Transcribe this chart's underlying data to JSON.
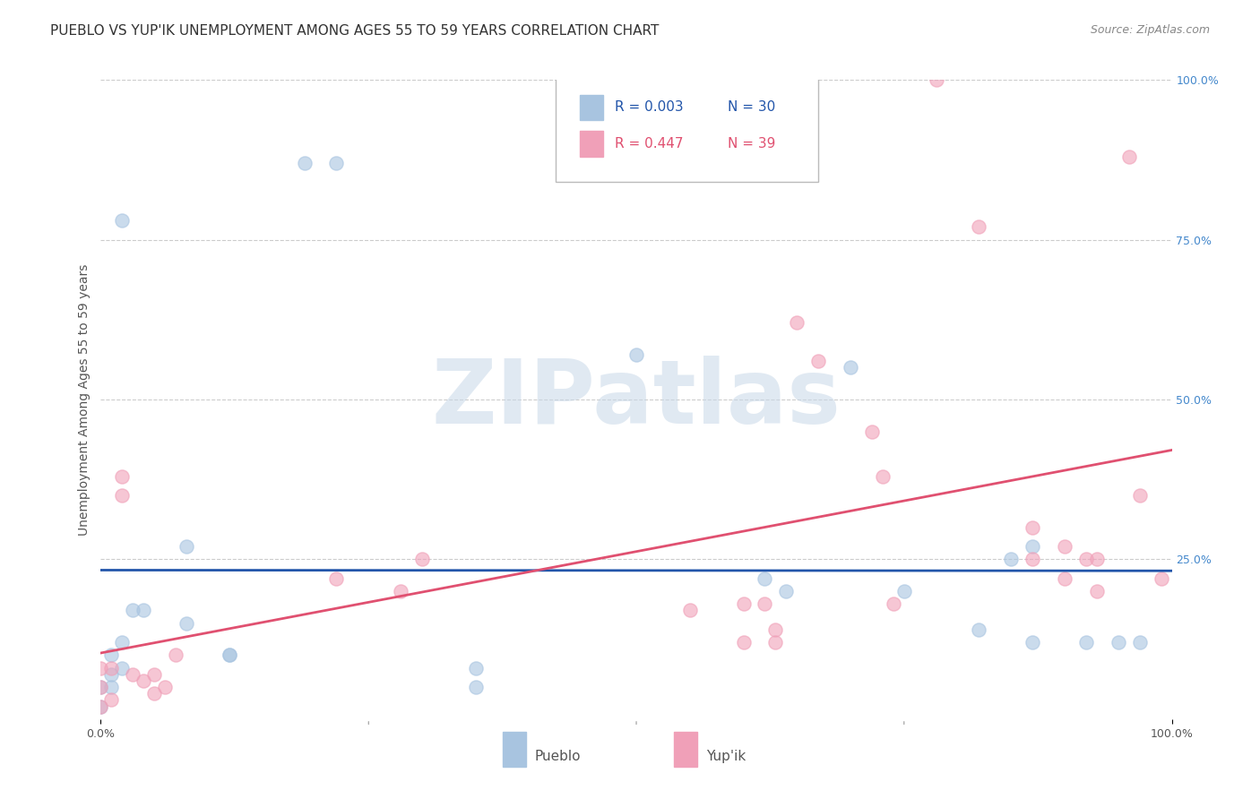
{
  "title": "PUEBLO VS YUP'IK UNEMPLOYMENT AMONG AGES 55 TO 59 YEARS CORRELATION CHART",
  "source": "Source: ZipAtlas.com",
  "ylabel": "Unemployment Among Ages 55 to 59 years",
  "xlim": [
    0.0,
    1.0
  ],
  "ylim": [
    0.0,
    1.0
  ],
  "grid_color": "#cccccc",
  "background_color": "#ffffff",
  "pueblo_color": "#a8c4e0",
  "yupik_color": "#f0a0b8",
  "pueblo_line_color": "#2255aa",
  "yupik_line_color": "#e05070",
  "legend_pueblo_r": "R = 0.003",
  "legend_pueblo_n": "N = 30",
  "legend_yupik_r": "R = 0.447",
  "legend_yupik_n": "N = 39",
  "pueblo_scatter_x": [
    0.02,
    0.08,
    0.19,
    0.22,
    0.0,
    0.01,
    0.01,
    0.02,
    0.02,
    0.03,
    0.04,
    0.0,
    0.01,
    0.08,
    0.12,
    0.12,
    0.35,
    0.35,
    0.5,
    0.62,
    0.64,
    0.7,
    0.75,
    0.82,
    0.85,
    0.87,
    0.87,
    0.92,
    0.95,
    0.97
  ],
  "pueblo_scatter_y": [
    0.78,
    0.27,
    0.87,
    0.87,
    0.05,
    0.1,
    0.07,
    0.08,
    0.12,
    0.17,
    0.17,
    0.02,
    0.05,
    0.15,
    0.1,
    0.1,
    0.05,
    0.08,
    0.57,
    0.22,
    0.2,
    0.55,
    0.2,
    0.14,
    0.25,
    0.27,
    0.12,
    0.12,
    0.12,
    0.12
  ],
  "yupik_scatter_x": [
    0.0,
    0.0,
    0.0,
    0.01,
    0.01,
    0.02,
    0.02,
    0.03,
    0.04,
    0.05,
    0.05,
    0.06,
    0.07,
    0.22,
    0.28,
    0.3,
    0.55,
    0.6,
    0.6,
    0.62,
    0.63,
    0.63,
    0.65,
    0.67,
    0.72,
    0.73,
    0.74,
    0.78,
    0.82,
    0.87,
    0.87,
    0.9,
    0.9,
    0.92,
    0.93,
    0.93,
    0.96,
    0.97,
    0.99
  ],
  "yupik_scatter_y": [
    0.05,
    0.08,
    0.02,
    0.03,
    0.08,
    0.35,
    0.38,
    0.07,
    0.06,
    0.07,
    0.04,
    0.05,
    0.1,
    0.22,
    0.2,
    0.25,
    0.17,
    0.18,
    0.12,
    0.18,
    0.14,
    0.12,
    0.62,
    0.56,
    0.45,
    0.38,
    0.18,
    1.0,
    0.77,
    0.3,
    0.25,
    0.27,
    0.22,
    0.25,
    0.25,
    0.2,
    0.88,
    0.35,
    0.22
  ],
  "marker_size": 120,
  "marker_alpha": 0.6,
  "watermark_text": "ZIPatlas",
  "watermark_color": "#c8d8e8",
  "watermark_fontsize": 72,
  "right_tick_color": "#4488cc"
}
